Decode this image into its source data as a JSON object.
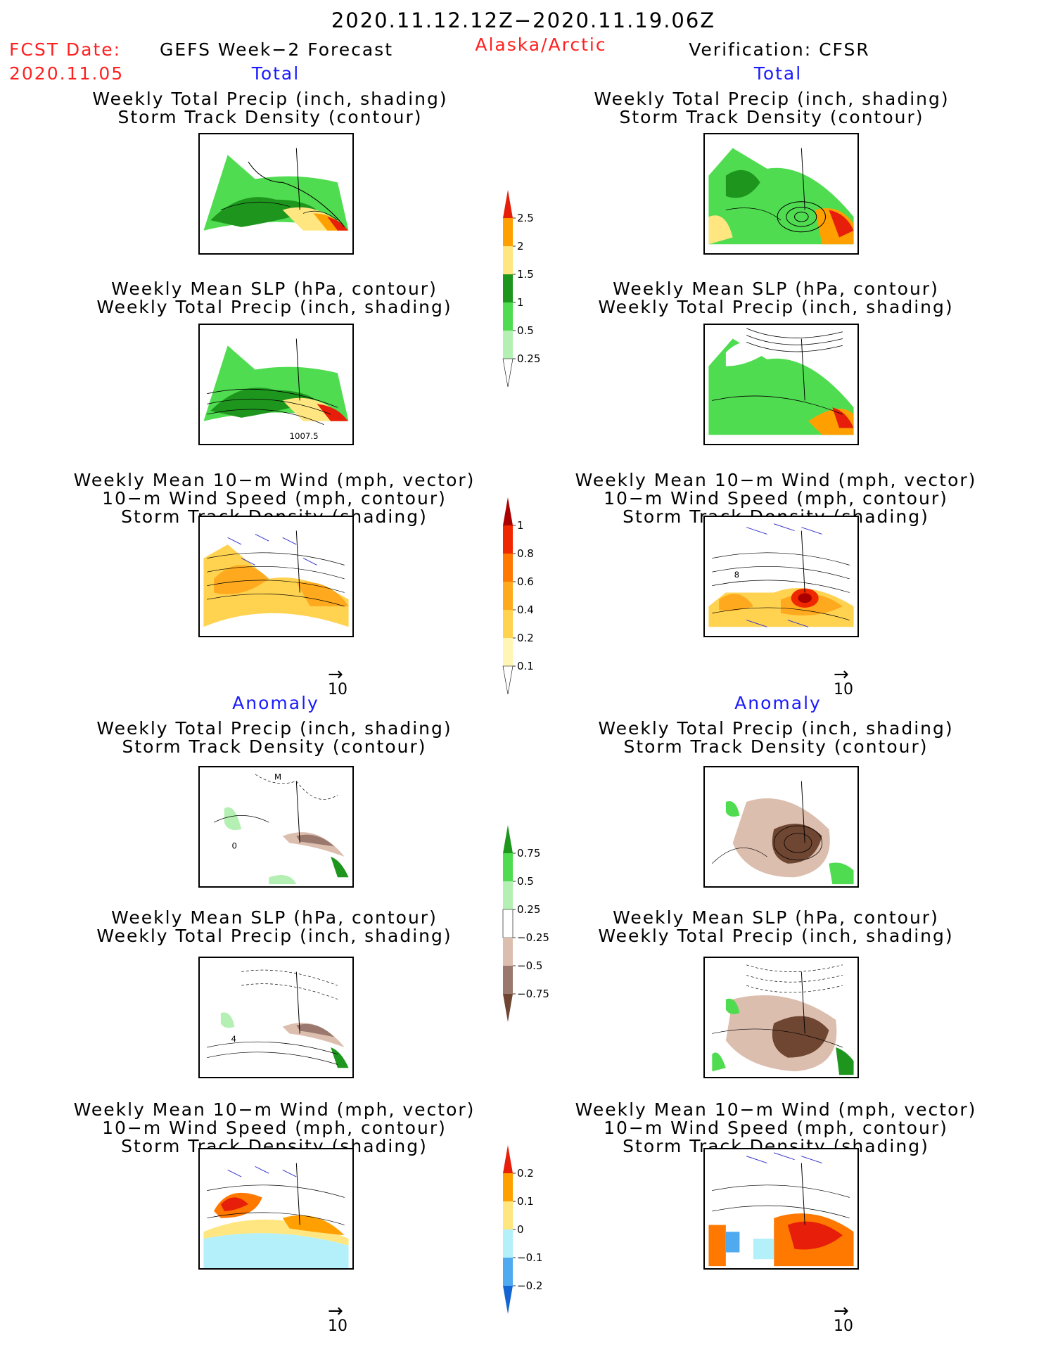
{
  "header": {
    "period": "2020.11.12.12Z−2020.11.19.06Z",
    "fcst_label": "FCST Date:",
    "fcst_date": "2020.11.05",
    "forecast": "GEFS Week−2 Forecast",
    "region": "Alaska/Arctic",
    "verification": "Verification: CFSR"
  },
  "sections": {
    "total": "Total",
    "anomaly": "Anomaly"
  },
  "titles": {
    "precip_track": [
      "Weekly Total Precip (inch, shading)",
      "Storm Track Density (contour)"
    ],
    "slp_precip": [
      "Weekly Mean SLP (hPa, contour)",
      "Weekly Total Precip (inch, shading)"
    ],
    "wind": [
      "Weekly Mean 10−m Wind (mph, vector)",
      "10−m Wind Speed (mph, contour)",
      "Storm Track Density (shading)"
    ]
  },
  "map_labels": {
    "slp_total_forecast": "1007.5",
    "anom_precip_forecast_a": "0",
    "anom_precip_forecast_b": "M",
    "anom_slp_forecast": "4",
    "wind_total_obs": "8"
  },
  "vector_reference": "10",
  "colorbars": [
    {
      "id": "total-precip",
      "colors": [
        "#ffffff",
        "#b4f0b4",
        "#50dc50",
        "#1e961e",
        "#ffe680",
        "#ffa000",
        "#e61e0a"
      ],
      "labels": [
        "0.25",
        "0.5",
        "1",
        "1.5",
        "2",
        "2.5"
      ]
    },
    {
      "id": "total-track",
      "colors": [
        "#ffffff",
        "#fff5b4",
        "#ffd250",
        "#ffaa1e",
        "#ff7800",
        "#f02800",
        "#aa0000"
      ],
      "labels": [
        "0.1",
        "0.2",
        "0.4",
        "0.6",
        "0.8",
        "1"
      ]
    },
    {
      "id": "anom-precip",
      "colors": [
        "#6e4632",
        "#9b786e",
        "#dcbeaf",
        "#ffffff",
        "#b4f0b4",
        "#50dc50",
        "#1e961e"
      ],
      "labels": [
        "−0.75",
        "−0.5",
        "−0.25",
        "0.25",
        "0.5",
        "0.75"
      ]
    },
    {
      "id": "anom-track",
      "colors": [
        "#1464d2",
        "#50aaf0",
        "#b4f0fa",
        "#ffe680",
        "#ffa000",
        "#e61e0a"
      ],
      "labels": [
        "−0.2",
        "−0.1",
        "0",
        "0.1",
        "0.2"
      ]
    }
  ]
}
